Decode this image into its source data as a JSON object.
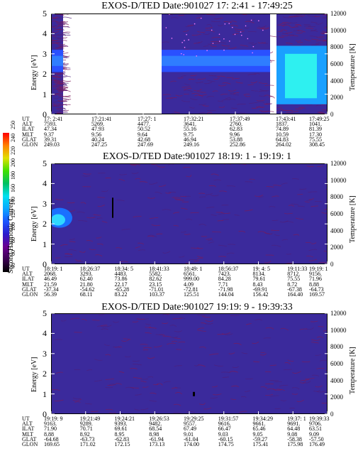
{
  "panels": [
    {
      "title": "EXOS-D/TED   Date:901027  17: 2:41 - 17:49:25",
      "ylabel": "Energy [eV]",
      "y2label": "Temperature [K]",
      "ephemeris": {
        "labels": [
          "UT",
          "ALT",
          "ILAT",
          "MLT",
          "GLAT",
          "GLON"
        ],
        "columns": [
          [
            "17: 2:41",
            "7593.",
            "47.34",
            "9.37",
            "39.31",
            "249.03"
          ],
          [
            "17:21:41",
            "5269.",
            "47.93",
            "9.56",
            "40.24",
            "247.25"
          ],
          [
            "17:27: 1",
            "4477.",
            "50.52",
            "9.64",
            "42.68",
            "247.69"
          ],
          [
            "17:32:21",
            "3641.",
            "55.16",
            "9.75",
            "46.94",
            "249.16"
          ],
          [
            "17:37:49",
            "2760.",
            "62.83",
            "9.96",
            "53.88",
            "252.86"
          ],
          [
            "17:43:41",
            "1837.",
            "74.89",
            "10.59",
            "64.83",
            "264.02"
          ],
          [
            "17:49:25",
            "1041.",
            "81.39",
            "17.30",
            "75.55",
            "308.45"
          ]
        ]
      }
    },
    {
      "title": "EXOS-D/TED   Date:901027  18:19: 1 - 19:19: 1",
      "ylabel": "Energy [eV]",
      "y2label": "Temperature [K]",
      "ephemeris": {
        "labels": [
          "UT",
          "ALT",
          "ILAT",
          "MLT",
          "GLAT",
          "GLON"
        ],
        "columns": [
          [
            "18:19: 1",
            "2068.",
            "46.49",
            "21.59",
            "-37.34",
            "56.39"
          ],
          [
            "18:26:37",
            "3293.",
            "62.40",
            "21.80",
            "-54.62",
            "68.11"
          ],
          [
            "18:34: 5",
            "4483.",
            "73.86",
            "22.17",
            "-65.28",
            "83.22"
          ],
          [
            "18:41:33",
            "5582.",
            "82.62",
            "23.15",
            "-71.01",
            "103.37"
          ],
          [
            "18:49: 1",
            "6561.",
            "999.00",
            "4.09",
            "-72.81",
            "125.51"
          ],
          [
            "18:56:37",
            "7423.",
            "84.28",
            "7.71",
            "-71.98",
            "144.04"
          ],
          [
            "19: 4: 5",
            "8134.",
            "79.61",
            "8.43",
            "-69.91",
            "156.42"
          ],
          [
            "19:11:33",
            "8712.",
            "75.55",
            "8.72",
            "-67.38",
            "164.40"
          ],
          [
            "19:19: 1",
            "9156.",
            "71.96",
            "8.88",
            "-64.73",
            "169.57"
          ]
        ]
      }
    },
    {
      "title": "EXOS-D/TED   Date:901027  19:19: 9 - 19:39:33",
      "ylabel": "Energy [eV]",
      "y2label": "Temperature [K]",
      "ephemeris": {
        "labels": [
          "UT",
          "ALT",
          "ILAT",
          "MLT",
          "GLAT",
          "GLON"
        ],
        "columns": [
          [
            "19:19: 9",
            "9163.",
            "71.90",
            "8.88",
            "-64.68",
            "169.65"
          ],
          [
            "19:21:49",
            "9289.",
            "70.71",
            "8.92",
            "-63.73",
            "171.02"
          ],
          [
            "19:24:21",
            "9393.",
            "69.61",
            "8.95",
            "-62.83",
            "172.15"
          ],
          [
            "19:26:53",
            "9482.",
            "68.54",
            "8.98",
            "-61.94",
            "173.13"
          ],
          [
            "19:29:25",
            "9557.",
            "67.49",
            "9.01",
            "-61.04",
            "174.00"
          ],
          [
            "19:31:57",
            "9616.",
            "66.47",
            "9.03",
            "-60.15",
            "174.75"
          ],
          [
            "19:34:29",
            "9661.",
            "65.46",
            "9.05",
            "-59.27",
            "175.41"
          ],
          [
            "19:37: 1",
            "9691.",
            "64.48",
            "9.08",
            "-58.38",
            "175.98"
          ],
          [
            "19:39:33",
            "9706.",
            "63.51",
            "9.09",
            "-57.50",
            "176.49"
          ]
        ]
      }
    }
  ],
  "colorbar": {
    "label": "Second Harmonic Current",
    "ticks": [
      "40",
      "60",
      "80",
      "100",
      "120",
      "140",
      "160",
      "180",
      "200",
      "220",
      "240",
      "250"
    ],
    "colors": [
      "#000000",
      "#3a0050",
      "#6a0090",
      "#2a1acc",
      "#1a55ff",
      "#0aa6ff",
      "#00e0f0",
      "#00c060",
      "#40e000",
      "#e0e000",
      "#ff8000",
      "#ff0000"
    ]
  },
  "chart_data": [
    {
      "type": "heatmap",
      "title": "EXOS-D/TED   Date:901027  17: 2:41 - 17:49:25",
      "ylabel": "Energy [eV]",
      "y2label": "Temperature [K]",
      "ylim": [
        0,
        5
      ],
      "y2lim": [
        0,
        12000
      ],
      "yticks": [
        "0",
        "1",
        "2",
        "3",
        "4",
        "5"
      ],
      "y2ticks": [
        "0",
        "2000",
        "4000",
        "6000",
        "8000",
        "10000",
        "12000"
      ],
      "x": [
        "17: 2:41",
        "17:21:41",
        "17:27: 1",
        "17:32:21",
        "17:37:49",
        "17:43:41",
        "17:49:25"
      ]
    },
    {
      "type": "heatmap",
      "title": "EXOS-D/TED   Date:901027  18:19: 1 - 19:19: 1",
      "ylabel": "Energy [eV]",
      "y2label": "Temperature [K]",
      "ylim": [
        0,
        5
      ],
      "y2lim": [
        0,
        12000
      ],
      "yticks": [
        "0",
        "1",
        "2",
        "3",
        "4",
        "5"
      ],
      "y2ticks": [
        "0",
        "2000",
        "4000",
        "6000",
        "8000",
        "10000",
        "12000"
      ],
      "x": [
        "18:19: 1",
        "18:26:37",
        "18:34: 5",
        "18:41:33",
        "18:49: 1",
        "18:56:37",
        "19: 4: 5",
        "19:11:33",
        "19:19: 1"
      ]
    },
    {
      "type": "heatmap",
      "title": "EXOS-D/TED   Date:901027  19:19: 9 - 19:39:33",
      "ylabel": "Energy [eV]",
      "y2label": "Temperature [K]",
      "ylim": [
        0,
        5
      ],
      "y2lim": [
        0,
        12000
      ],
      "yticks": [
        "0",
        "1",
        "2",
        "3",
        "4",
        "5"
      ],
      "y2ticks": [
        "0",
        "2000",
        "4000",
        "6000",
        "8000",
        "10000",
        "12000"
      ],
      "x": [
        "19:19: 9",
        "19:21:49",
        "19:24:21",
        "19:26:53",
        "19:29:25",
        "19:31:57",
        "19:34:29",
        "19:37: 1",
        "19:39:33"
      ]
    }
  ]
}
